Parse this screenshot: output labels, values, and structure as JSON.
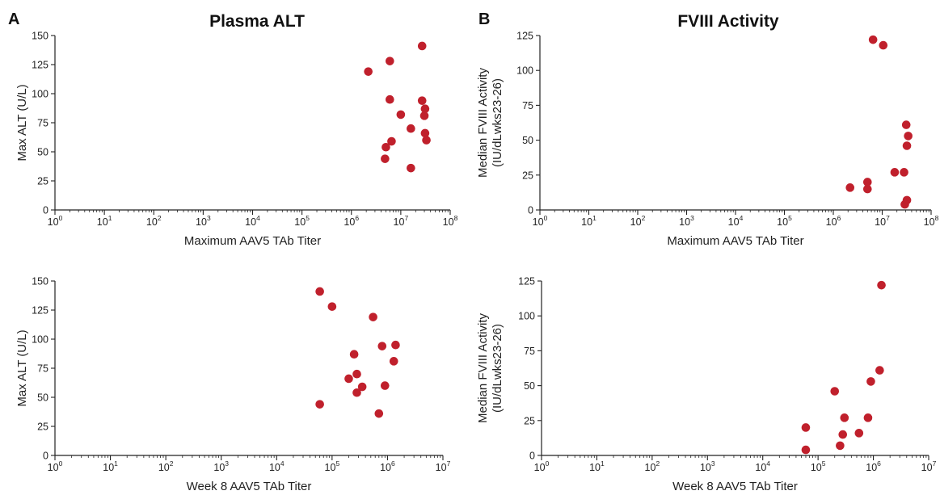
{
  "panels": {
    "A": {
      "letter": "A",
      "title": "Plasma ALT"
    },
    "B": {
      "letter": "B",
      "title": "FVIII Activity"
    }
  },
  "colors": {
    "point": "#c0202c",
    "axis": "#222222"
  },
  "chart_data": [
    {
      "id": "alt_max",
      "type": "scatter",
      "xscale": "log",
      "xlim_log10": [
        0,
        8
      ],
      "xlabel": "Maximum AAV5 TAb Titer",
      "ylabel": "Max ALT (U/L)",
      "ylim": [
        0,
        150
      ],
      "yticks": [
        0,
        25,
        50,
        75,
        100,
        125,
        150
      ],
      "points": [
        {
          "x": 2200000.0,
          "y": 119
        },
        {
          "x": 6000000.0,
          "y": 128
        },
        {
          "x": 27000000.0,
          "y": 141
        },
        {
          "x": 6000000.0,
          "y": 95
        },
        {
          "x": 27000000.0,
          "y": 94
        },
        {
          "x": 10000000.0,
          "y": 82
        },
        {
          "x": 31000000.0,
          "y": 87
        },
        {
          "x": 30000000.0,
          "y": 81
        },
        {
          "x": 16000000.0,
          "y": 70
        },
        {
          "x": 31000000.0,
          "y": 66
        },
        {
          "x": 6500000.0,
          "y": 59
        },
        {
          "x": 33000000.0,
          "y": 60
        },
        {
          "x": 5000000.0,
          "y": 54
        },
        {
          "x": 4800000.0,
          "y": 44
        },
        {
          "x": 16000000.0,
          "y": 36
        }
      ]
    },
    {
      "id": "fviii_max",
      "type": "scatter",
      "xscale": "log",
      "xlim_log10": [
        0,
        8
      ],
      "xlabel": "Maximum AAV5 TAb Titer",
      "ylabel": [
        "Median FVIII Activity",
        "(IU/dLwks23-26)"
      ],
      "ylim": [
        0,
        125
      ],
      "yticks": [
        0,
        25,
        50,
        75,
        100,
        125
      ],
      "points": [
        {
          "x": 6500000.0,
          "y": 122
        },
        {
          "x": 10500000.0,
          "y": 118
        },
        {
          "x": 31000000.0,
          "y": 61
        },
        {
          "x": 34000000.0,
          "y": 53
        },
        {
          "x": 32000000.0,
          "y": 46
        },
        {
          "x": 18000000.0,
          "y": 27
        },
        {
          "x": 28000000.0,
          "y": 27
        },
        {
          "x": 5000000.0,
          "y": 20
        },
        {
          "x": 2200000.0,
          "y": 16
        },
        {
          "x": 5000000.0,
          "y": 15
        },
        {
          "x": 32000000.0,
          "y": 7
        },
        {
          "x": 29000000.0,
          "y": 4
        }
      ]
    },
    {
      "id": "alt_wk8",
      "type": "scatter",
      "xscale": "log",
      "xlim_log10": [
        0,
        7
      ],
      "xlabel": "Week 8 AAV5 TAb Titer",
      "ylabel": "Max ALT (U/L)",
      "ylim": [
        0,
        150
      ],
      "yticks": [
        0,
        25,
        50,
        75,
        100,
        125,
        150
      ],
      "points": [
        {
          "x": 60000.0,
          "y": 141
        },
        {
          "x": 100000.0,
          "y": 128
        },
        {
          "x": 550000.0,
          "y": 119
        },
        {
          "x": 800000.0,
          "y": 94
        },
        {
          "x": 1400000.0,
          "y": 95
        },
        {
          "x": 250000.0,
          "y": 87
        },
        {
          "x": 1300000.0,
          "y": 81
        },
        {
          "x": 280000.0,
          "y": 70
        },
        {
          "x": 200000.0,
          "y": 66
        },
        {
          "x": 350000.0,
          "y": 59
        },
        {
          "x": 900000.0,
          "y": 60
        },
        {
          "x": 280000.0,
          "y": 54
        },
        {
          "x": 60000.0,
          "y": 44
        },
        {
          "x": 700000.0,
          "y": 36
        }
      ]
    },
    {
      "id": "fviii_wk8",
      "type": "scatter",
      "xscale": "log",
      "xlim_log10": [
        0,
        7
      ],
      "xlabel": "Week 8 AAV5 TAb Titer",
      "ylabel": [
        "Median FVIII Activity",
        "(IU/dLwks23-26)"
      ],
      "ylim": [
        0,
        125
      ],
      "yticks": [
        0,
        25,
        50,
        75,
        100,
        125
      ],
      "points": [
        {
          "x": 1400000.0,
          "y": 122
        },
        {
          "x": 1300000.0,
          "y": 61
        },
        {
          "x": 900000.0,
          "y": 53
        },
        {
          "x": 200000.0,
          "y": 46
        },
        {
          "x": 300000.0,
          "y": 27
        },
        {
          "x": 800000.0,
          "y": 27
        },
        {
          "x": 60000.0,
          "y": 20
        },
        {
          "x": 550000.0,
          "y": 16
        },
        {
          "x": 280000.0,
          "y": 15
        },
        {
          "x": 250000.0,
          "y": 7
        },
        {
          "x": 60000.0,
          "y": 4
        }
      ]
    }
  ]
}
